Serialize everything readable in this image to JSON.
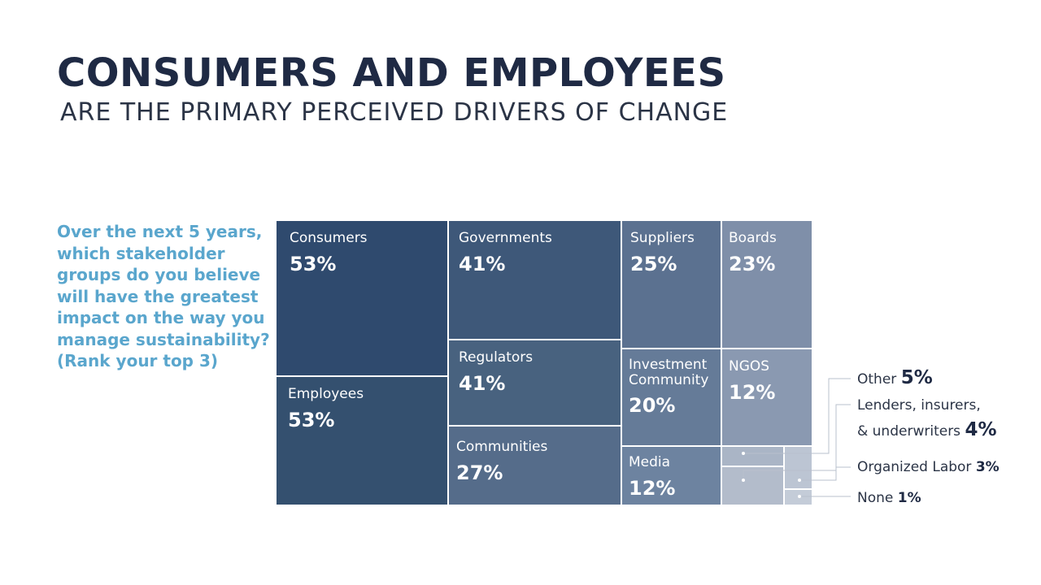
{
  "header": {
    "title": "CONSUMERS AND EMPLOYEES",
    "subtitle": "ARE THE PRIMARY PERCEIVED DRIVERS OF CHANGE"
  },
  "question": "Over the next 5 years, which stakeholder groups do you believe will have the greatest impact on the way you manage sustainability? (Rank your top 3)",
  "colors": {
    "title": "#1f2a44",
    "question": "#5aa6cd",
    "tile_dark": "#2f4a6e",
    "tile_light": "#bcc5d3",
    "leader_line": "#b8c0cc"
  },
  "chart_data": {
    "type": "treemap",
    "title": "",
    "unit": "%",
    "categories": [
      "Consumers",
      "Employees",
      "Governments",
      "Regulators",
      "Communities",
      "Suppliers",
      "Investment Community",
      "Media",
      "Boards",
      "NGOS",
      "Other",
      "Lenders, insurers, & underwriters",
      "Organized Labor",
      "None"
    ],
    "values": [
      53,
      53,
      41,
      41,
      27,
      25,
      20,
      12,
      23,
      12,
      5,
      4,
      3,
      1
    ],
    "tiles": [
      {
        "name": "Consumers",
        "value": 53,
        "label": "Consumers",
        "value_label": "53%"
      },
      {
        "name": "Employees",
        "value": 53,
        "label": "Employees",
        "value_label": "53%"
      },
      {
        "name": "Governments",
        "value": 41,
        "label": "Governments",
        "value_label": "41%"
      },
      {
        "name": "Regulators",
        "value": 41,
        "label": "Regulators",
        "value_label": "41%"
      },
      {
        "name": "Communities",
        "value": 27,
        "label": "Communities",
        "value_label": "27%"
      },
      {
        "name": "Suppliers",
        "value": 25,
        "label": "Suppliers",
        "value_label": "25%"
      },
      {
        "name": "Investment Community",
        "value": 20,
        "label": "Investment\nCommunity",
        "value_label": "20%"
      },
      {
        "name": "Media",
        "value": 12,
        "label": "Media",
        "value_label": "12%"
      },
      {
        "name": "Boards",
        "value": 23,
        "label": "Boards",
        "value_label": "23%"
      },
      {
        "name": "NGOS",
        "value": 12,
        "label": "NGOS",
        "value_label": "12%"
      }
    ],
    "small_tiles": [
      {
        "name": "Other",
        "value": 5,
        "label": "Other",
        "value_label": "5%"
      },
      {
        "name": "Lenders, insurers, & underwriters",
        "value": 4,
        "label_line1": "Lenders, insurers,",
        "label_line2": "& underwriters",
        "value_label": "4%"
      },
      {
        "name": "Organized Labor",
        "value": 3,
        "label": "Organized Labor",
        "value_label": "3%"
      },
      {
        "name": "None",
        "value": 1,
        "label": "None",
        "value_label": "1%"
      }
    ]
  }
}
